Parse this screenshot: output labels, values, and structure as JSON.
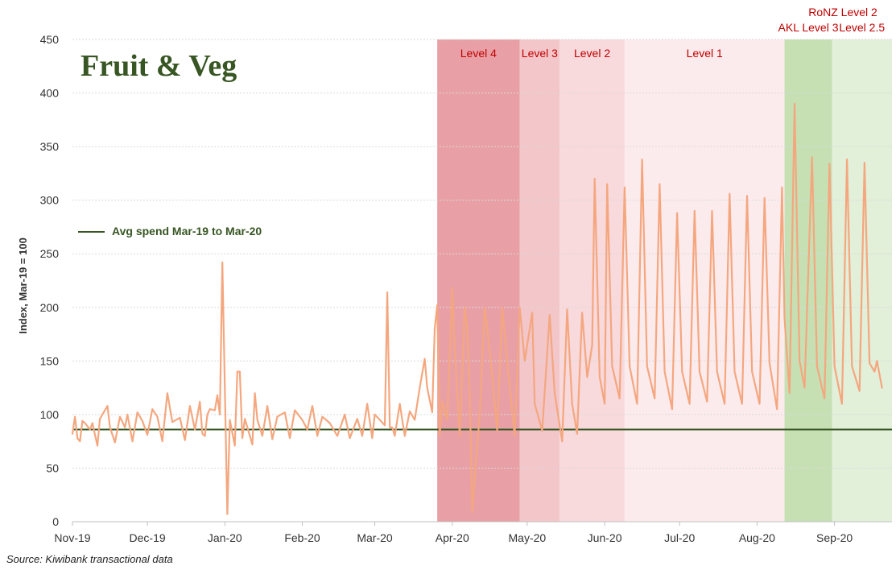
{
  "chart_data": {
    "type": "line",
    "title": "Fruit & Veg",
    "ylabel": "Index, Mar-19 = 100",
    "xlabel": "",
    "ylim": [
      0,
      450
    ],
    "yticks": [
      0,
      50,
      100,
      150,
      200,
      250,
      300,
      350,
      400,
      450
    ],
    "xlim": [
      "2019-11-01",
      "2020-09-24"
    ],
    "xticks": [
      {
        "label": "Nov-19",
        "date": "2019-11-01"
      },
      {
        "label": "Dec-19",
        "date": "2019-12-01"
      },
      {
        "label": "Jan-20",
        "date": "2020-01-01"
      },
      {
        "label": "Feb-20",
        "date": "2020-02-01"
      },
      {
        "label": "Mar-20",
        "date": "2020-03-01"
      },
      {
        "label": "Apr-20",
        "date": "2020-04-01"
      },
      {
        "label": "May-20",
        "date": "2020-05-01"
      },
      {
        "label": "Jun-20",
        "date": "2020-06-01"
      },
      {
        "label": "Jul-20",
        "date": "2020-07-01"
      },
      {
        "label": "Aug-20",
        "date": "2020-08-01"
      },
      {
        "label": "Sep-20",
        "date": "2020-09-01"
      }
    ],
    "grid": true,
    "legend": {
      "position": "top-left",
      "entries": [
        {
          "label": "Avg spend Mar-19 to Mar-20",
          "color": "#375623"
        }
      ]
    },
    "reference_line": {
      "label": "Avg spend Mar-19 to Mar-20",
      "value": 86,
      "color": "#375623"
    },
    "series": [
      {
        "color": "#f4a77f",
        "points": [
          [
            "2019-11-01",
            82
          ],
          [
            "2019-11-02",
            98
          ],
          [
            "2019-11-03",
            78
          ],
          [
            "2019-11-04",
            75
          ],
          [
            "2019-11-05",
            94
          ],
          [
            "2019-11-06",
            92
          ],
          [
            "2019-11-08",
            86
          ],
          [
            "2019-11-09",
            92
          ],
          [
            "2019-11-11",
            71
          ],
          [
            "2019-11-12",
            96
          ],
          [
            "2019-11-15",
            108
          ],
          [
            "2019-11-16",
            88
          ],
          [
            "2019-11-18",
            74
          ],
          [
            "2019-11-20",
            98
          ],
          [
            "2019-11-22",
            88
          ],
          [
            "2019-11-23",
            100
          ],
          [
            "2019-11-25",
            75
          ],
          [
            "2019-11-27",
            102
          ],
          [
            "2019-11-29",
            94
          ],
          [
            "2019-12-01",
            81
          ],
          [
            "2019-12-03",
            105
          ],
          [
            "2019-12-05",
            98
          ],
          [
            "2019-12-07",
            75
          ],
          [
            "2019-12-09",
            120
          ],
          [
            "2019-12-11",
            93
          ],
          [
            "2019-12-14",
            97
          ],
          [
            "2019-12-16",
            76
          ],
          [
            "2019-12-18",
            108
          ],
          [
            "2019-12-20",
            86
          ],
          [
            "2019-12-22",
            112
          ],
          [
            "2019-12-23",
            82
          ],
          [
            "2019-12-24",
            80
          ],
          [
            "2019-12-25",
            100
          ],
          [
            "2019-12-26",
            105
          ],
          [
            "2019-12-28",
            104
          ],
          [
            "2019-12-29",
            118
          ],
          [
            "2019-12-30",
            100
          ],
          [
            "2019-12-31",
            242
          ],
          [
            "2020-01-02",
            7
          ],
          [
            "2020-01-03",
            95
          ],
          [
            "2020-01-05",
            71
          ],
          [
            "2020-01-06",
            140
          ],
          [
            "2020-01-07",
            140
          ],
          [
            "2020-01-08",
            78
          ],
          [
            "2020-01-09",
            96
          ],
          [
            "2020-01-12",
            72
          ],
          [
            "2020-01-13",
            120
          ],
          [
            "2020-01-14",
            95
          ],
          [
            "2020-01-16",
            80
          ],
          [
            "2020-01-18",
            108
          ],
          [
            "2020-01-20",
            77
          ],
          [
            "2020-01-22",
            98
          ],
          [
            "2020-01-25",
            102
          ],
          [
            "2020-01-27",
            78
          ],
          [
            "2020-01-29",
            104
          ],
          [
            "2020-02-01",
            95
          ],
          [
            "2020-02-03",
            86
          ],
          [
            "2020-02-05",
            108
          ],
          [
            "2020-02-07",
            80
          ],
          [
            "2020-02-09",
            98
          ],
          [
            "2020-02-12",
            92
          ],
          [
            "2020-02-15",
            80
          ],
          [
            "2020-02-18",
            100
          ],
          [
            "2020-02-20",
            78
          ],
          [
            "2020-02-23",
            96
          ],
          [
            "2020-02-25",
            80
          ],
          [
            "2020-02-27",
            110
          ],
          [
            "2020-02-29",
            78
          ],
          [
            "2020-03-01",
            100
          ],
          [
            "2020-03-03",
            95
          ],
          [
            "2020-03-05",
            90
          ],
          [
            "2020-03-06",
            214
          ],
          [
            "2020-03-07",
            88
          ],
          [
            "2020-03-08",
            88
          ],
          [
            "2020-03-09",
            80
          ],
          [
            "2020-03-11",
            110
          ],
          [
            "2020-03-13",
            80
          ],
          [
            "2020-03-15",
            103
          ],
          [
            "2020-03-17",
            95
          ],
          [
            "2020-03-19",
            125
          ],
          [
            "2020-03-21",
            152
          ],
          [
            "2020-03-22",
            125
          ],
          [
            "2020-03-24",
            102
          ],
          [
            "2020-03-25",
            180
          ],
          [
            "2020-03-26",
            202
          ],
          [
            "2020-03-27",
            80
          ],
          [
            "2020-03-28",
            112
          ],
          [
            "2020-03-30",
            95
          ],
          [
            "2020-04-01",
            218
          ],
          [
            "2020-04-02",
            160
          ],
          [
            "2020-04-04",
            80
          ],
          [
            "2020-04-06",
            200
          ],
          [
            "2020-04-07",
            180
          ],
          [
            "2020-04-08",
            120
          ],
          [
            "2020-04-09",
            9
          ],
          [
            "2020-04-10",
            42
          ],
          [
            "2020-04-12",
            100
          ],
          [
            "2020-04-14",
            200
          ],
          [
            "2020-04-16",
            160
          ],
          [
            "2020-04-19",
            85
          ],
          [
            "2020-04-21",
            200
          ],
          [
            "2020-04-23",
            150
          ],
          [
            "2020-04-26",
            80
          ],
          [
            "2020-04-28",
            200
          ],
          [
            "2020-04-30",
            150
          ],
          [
            "2020-05-03",
            195
          ],
          [
            "2020-05-04",
            110
          ],
          [
            "2020-05-07",
            85
          ],
          [
            "2020-05-10",
            193
          ],
          [
            "2020-05-12",
            120
          ],
          [
            "2020-05-15",
            75
          ],
          [
            "2020-05-17",
            198
          ],
          [
            "2020-05-19",
            110
          ],
          [
            "2020-05-21",
            82
          ],
          [
            "2020-05-23",
            195
          ],
          [
            "2020-05-25",
            135
          ],
          [
            "2020-05-27",
            165
          ],
          [
            "2020-05-28",
            320
          ],
          [
            "2020-05-30",
            135
          ],
          [
            "2020-06-01",
            110
          ],
          [
            "2020-06-02",
            315
          ],
          [
            "2020-06-04",
            145
          ],
          [
            "2020-06-07",
            115
          ],
          [
            "2020-06-09",
            312
          ],
          [
            "2020-06-11",
            145
          ],
          [
            "2020-06-14",
            110
          ],
          [
            "2020-06-16",
            338
          ],
          [
            "2020-06-18",
            145
          ],
          [
            "2020-06-21",
            115
          ],
          [
            "2020-06-23",
            315
          ],
          [
            "2020-06-25",
            140
          ],
          [
            "2020-06-28",
            105
          ],
          [
            "2020-06-30",
            288
          ],
          [
            "2020-07-02",
            140
          ],
          [
            "2020-07-05",
            110
          ],
          [
            "2020-07-07",
            290
          ],
          [
            "2020-07-09",
            140
          ],
          [
            "2020-07-12",
            112
          ],
          [
            "2020-07-14",
            290
          ],
          [
            "2020-07-16",
            140
          ],
          [
            "2020-07-19",
            110
          ],
          [
            "2020-07-21",
            306
          ],
          [
            "2020-07-23",
            140
          ],
          [
            "2020-07-26",
            110
          ],
          [
            "2020-07-28",
            304
          ],
          [
            "2020-07-30",
            140
          ],
          [
            "2020-08-02",
            110
          ],
          [
            "2020-08-04",
            302
          ],
          [
            "2020-08-06",
            148
          ],
          [
            "2020-08-09",
            105
          ],
          [
            "2020-08-11",
            312
          ],
          [
            "2020-08-12",
            190
          ],
          [
            "2020-08-14",
            120
          ],
          [
            "2020-08-16",
            390
          ],
          [
            "2020-08-18",
            150
          ],
          [
            "2020-08-20",
            125
          ],
          [
            "2020-08-23",
            340
          ],
          [
            "2020-08-25",
            145
          ],
          [
            "2020-08-28",
            115
          ],
          [
            "2020-08-30",
            334
          ],
          [
            "2020-09-01",
            145
          ],
          [
            "2020-09-04",
            110
          ],
          [
            "2020-09-06",
            338
          ],
          [
            "2020-09-08",
            145
          ],
          [
            "2020-09-11",
            122
          ],
          [
            "2020-09-13",
            335
          ],
          [
            "2020-09-15",
            148
          ],
          [
            "2020-09-17",
            140
          ],
          [
            "2020-09-18",
            150
          ],
          [
            "2020-09-20",
            125
          ]
        ]
      }
    ],
    "bands": [
      {
        "label": "Level 4",
        "start": "2020-03-26",
        "end": "2020-04-28",
        "color": "#e8a0a6"
      },
      {
        "label": "Level 3",
        "start": "2020-04-28",
        "end": "2020-05-14",
        "color": "#f3c6ca"
      },
      {
        "label": "Level 2",
        "start": "2020-05-14",
        "end": "2020-06-09",
        "color": "#f8d9dc"
      },
      {
        "label": "Level 1",
        "start": "2020-06-09",
        "end": "2020-08-12",
        "color": "#fcebed"
      },
      {
        "label": "AKL  Level 3",
        "start": "2020-08-12",
        "end": "2020-08-31",
        "color": "#c6e0b4"
      },
      {
        "label": "Level 2.5",
        "start": "2020-08-31",
        "end": "2020-09-24",
        "color": "#e2efd9"
      }
    ],
    "annotations": [
      {
        "text": "RoNZ Level 2"
      }
    ]
  },
  "source": "Source: Kiwibank transactional data"
}
